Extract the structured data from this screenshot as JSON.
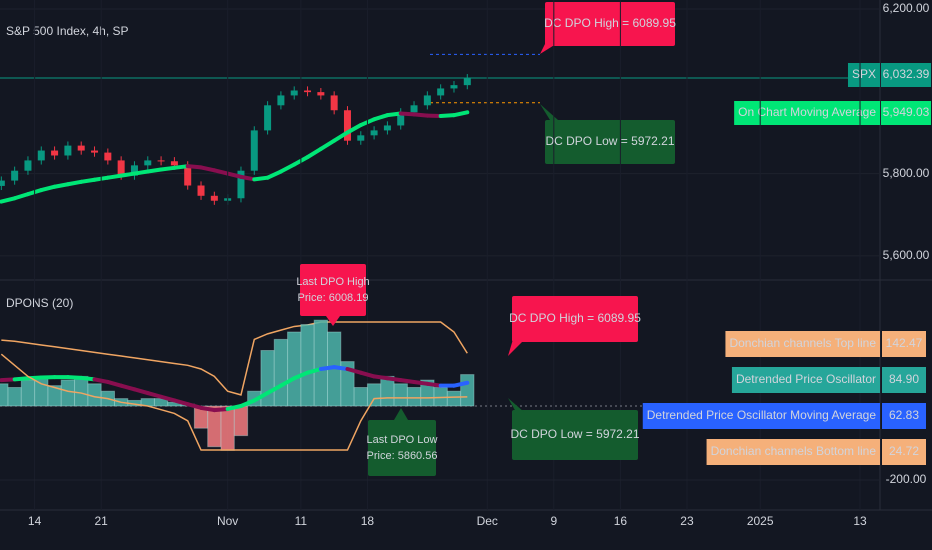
{
  "chart_data": [
    {
      "type": "candlestick",
      "title": "S&P 500 Index, 4h, SP",
      "x": [
        -2.5,
        -1.5,
        -0.5,
        0.5,
        1.5,
        2.5,
        3.5,
        4.5,
        5.5,
        6.5,
        7.5,
        8.5,
        9.5,
        10.5,
        11.5,
        12.5,
        13.5,
        14.5,
        15.5,
        16.5,
        17.5,
        18.5,
        19.5,
        20.5,
        21.5,
        22.5,
        23.5,
        24.5,
        25.5,
        26.5,
        27.5,
        28.5,
        29.5,
        30.5,
        31.5,
        32.5
      ],
      "open": [
        5770,
        5783,
        5807,
        5832,
        5856,
        5844,
        5868,
        5856,
        5851,
        5832,
        5795,
        5820,
        5832,
        5830,
        5820,
        5771,
        5746,
        5734,
        5740,
        5807,
        5905,
        5966,
        5990,
        6002,
        5998,
        5990,
        5954,
        5880,
        5893,
        5905,
        5917,
        5949,
        5966,
        5990,
        6007,
        6015
      ],
      "high": [
        5793,
        5817,
        5842,
        5866,
        5866,
        5878,
        5878,
        5866,
        5861,
        5842,
        5830,
        5842,
        5842,
        5840,
        5830,
        5781,
        5756,
        5750,
        5817,
        5915,
        5976,
        6000,
        6012,
        6012,
        6008,
        6000,
        5964,
        5903,
        5915,
        5927,
        5959,
        5976,
        6000,
        6017,
        6025,
        6042
      ],
      "low": [
        5760,
        5773,
        5797,
        5822,
        5834,
        5834,
        5846,
        5841,
        5822,
        5785,
        5785,
        5810,
        5820,
        5810,
        5761,
        5736,
        5724,
        5724,
        5730,
        5797,
        5895,
        5956,
        5980,
        5988,
        5980,
        5944,
        5870,
        5870,
        5883,
        5895,
        5907,
        5939,
        5956,
        5980,
        5997,
        6005
      ],
      "close": [
        5783,
        5807,
        5832,
        5856,
        5844,
        5868,
        5856,
        5851,
        5832,
        5795,
        5820,
        5832,
        5830,
        5820,
        5771,
        5746,
        5734,
        5740,
        5807,
        5905,
        5966,
        5990,
        6002,
        5998,
        5990,
        5954,
        5880,
        5893,
        5905,
        5917,
        5949,
        5966,
        5990,
        6007,
        6015,
        6032
      ],
      "up_color": "#089981",
      "down_color": "#f23645",
      "moving_average": {
        "name": "On Chart Moving Average",
        "rising_color": "#00e676",
        "falling_color": "#880e4f",
        "value_label": "5,949.03",
        "values": [
          5732,
          5740,
          5750,
          5760,
          5768,
          5774,
          5780,
          5785,
          5790,
          5795,
          5800,
          5805,
          5810,
          5814,
          5818,
          5815,
          5808,
          5800,
          5792,
          5786,
          5790,
          5805,
          5822,
          5840,
          5860,
          5880,
          5900,
          5918,
          5932,
          5942,
          5946,
          5944,
          5941,
          5940,
          5942,
          5949.03
        ]
      },
      "last_price": {
        "name": "SPX",
        "value": 6032.39,
        "label": "6,032.39",
        "color": "#089981"
      },
      "levels": [
        {
          "text": "DC DPO High = 6089.95",
          "value": 6089.95,
          "color": "#f7154e",
          "line_color": "#2962ff"
        },
        {
          "text": "DC DPO Low = 5972.21",
          "value": 5972.21,
          "color": "#145c2e",
          "line_color": "#ff9800"
        }
      ],
      "xlim": [
        -2.6,
        63.5
      ],
      "ylim": [
        5551,
        6222
      ],
      "yticks": [
        {
          "value": 5600,
          "label": "5,600.00"
        },
        {
          "value": 5800,
          "label": "5,800.00"
        },
        {
          "value": 6200,
          "label": "6,200.00"
        }
      ]
    },
    {
      "type": "oscillator",
      "title": "DPONS (20)",
      "x": [
        -2.5,
        -1.5,
        -0.5,
        0.5,
        1.5,
        2.5,
        3.5,
        4.5,
        5.5,
        6.5,
        7.5,
        8.5,
        9.5,
        10.5,
        11.5,
        12.5,
        13.5,
        14.5,
        15.5,
        16.5,
        17.5,
        18.5,
        19.5,
        20.5,
        21.5,
        22.5,
        23.5,
        24.5,
        25.5,
        26.5,
        27.5,
        28.5,
        29.5,
        30.5,
        31.5,
        32.5
      ],
      "series": [
        {
          "name": "Donchian channels Top line",
          "style": "line",
          "color": "#f0a562",
          "value_label": "142.47",
          "values": [
            178,
            175,
            170,
            165,
            160,
            155,
            150,
            145,
            140,
            135,
            130,
            125,
            120,
            115,
            110,
            100,
            80,
            40,
            30,
            180,
            195,
            205,
            215,
            219,
            227,
            227,
            227,
            227,
            227,
            227,
            227,
            227,
            227,
            227,
            200,
            142.47
          ]
        },
        {
          "name": "Detrended Price Oscillator",
          "style": "histogram",
          "color": "#4db6ac",
          "negative_color": "#f77c80",
          "value_label": "84.90",
          "values": [
            60,
            50,
            70,
            75,
            55,
            70,
            80,
            60,
            40,
            20,
            15,
            20,
            20,
            10,
            5,
            -60,
            -110,
            -120,
            -80,
            40,
            150,
            180,
            200,
            220,
            232,
            200,
            120,
            50,
            60,
            80,
            60,
            50,
            70,
            50,
            40,
            84.9
          ]
        },
        {
          "name": "Detrended Price Oscillator Moving Average",
          "style": "colored-line",
          "color": "#2962ff",
          "value_label": "62.83",
          "point_colors": [
            "#880e4f",
            "#880e4f",
            "#00e676",
            "#00e676",
            "#00e676",
            "#00e676",
            "#00e676",
            "#00e676",
            "#880e4f",
            "#880e4f",
            "#880e4f",
            "#880e4f",
            "#880e4f",
            "#880e4f",
            "#880e4f",
            "#880e4f",
            "#880e4f",
            "#880e4f",
            "#00e676",
            "#00e676",
            "#00e676",
            "#00e676",
            "#00e676",
            "#00e676",
            "#00e676",
            "#2962ff",
            "#2962ff",
            "#880e4f",
            "#880e4f",
            "#880e4f",
            "#880e4f",
            "#880e4f",
            "#880e4f",
            "#880e4f",
            "#2962ff",
            "#2962ff"
          ],
          "values": [
            70,
            72,
            75,
            77,
            78,
            78,
            76,
            72,
            65,
            55,
            45,
            35,
            25,
            15,
            5,
            -5,
            -11,
            -8,
            0,
            15,
            35,
            55,
            75,
            90,
            100,
            105,
            100,
            90,
            80,
            75,
            70,
            65,
            60,
            55,
            55,
            62.83
          ]
        },
        {
          "name": "Donchian channels Bottom line",
          "style": "line",
          "color": "#f0a562",
          "value_label": "24.72",
          "values": [
            140,
            110,
            80,
            60,
            50,
            40,
            35,
            25,
            20,
            10,
            5,
            0,
            -10,
            -20,
            -40,
            -119,
            -119,
            -119,
            -119,
            -119,
            -119,
            -119,
            -119,
            -119,
            -119,
            -119,
            -119,
            -40,
            20,
            22,
            22,
            22,
            22,
            23,
            24,
            24.72
          ]
        }
      ],
      "annotations": [
        {
          "lines": [
            "Last DPO High",
            "Price: 6008.19"
          ],
          "color": "#f7154e"
        },
        {
          "lines": [
            "Last DPO Low",
            "Price: 5860.56"
          ],
          "color": "#145c2e"
        }
      ],
      "xlim": [
        -2.6,
        63.5
      ],
      "ylim": [
        -281,
        327
      ],
      "yticks": [
        {
          "value": -200,
          "label": "-200.00"
        }
      ],
      "xticks": [
        {
          "value": 0,
          "label": "14"
        },
        {
          "value": 5,
          "label": "21"
        },
        {
          "value": 14.5,
          "label": "Nov"
        },
        {
          "value": 20,
          "label": "11"
        },
        {
          "value": 25,
          "label": "18"
        },
        {
          "value": 34,
          "label": "Dec"
        },
        {
          "value": 39,
          "label": "9"
        },
        {
          "value": 44,
          "label": "16"
        },
        {
          "value": 49,
          "label": "23"
        },
        {
          "value": 54.5,
          "label": "2025"
        },
        {
          "value": 62,
          "label": "13"
        }
      ]
    }
  ]
}
